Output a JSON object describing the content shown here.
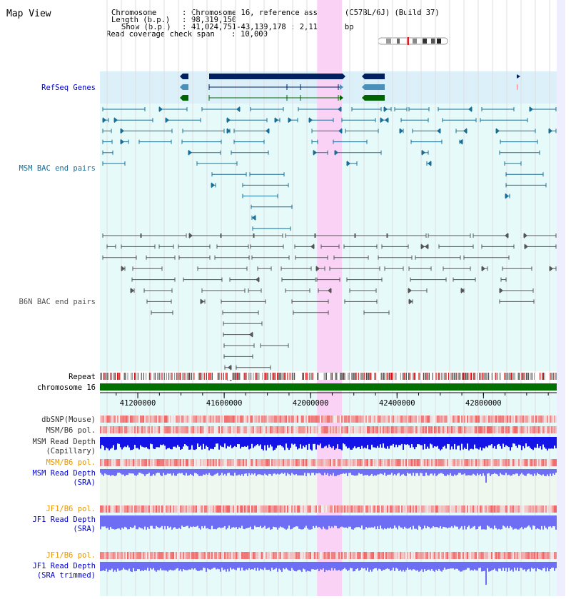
{
  "title": "Map View",
  "info": {
    "chromosome_label": "Chromosome",
    "chromosome_value": "Chromosome 16, reference assembly (C57BL/6J) (Build 37)",
    "length_label": "Length (b.p.)",
    "length_value": "98,319,150",
    "show_label": "Show (b.p.)",
    "show_value": "41,024,751-43,139,178 : 2,114,428 bp",
    "span_label": "Read coverage check span",
    "span_value": "10,000"
  },
  "tracks": {
    "refseq": "RefSeq Genes",
    "msm_bac": "MSM BAC end pairs",
    "b6n_bac": "B6N BAC end pairs",
    "repeat": "Repeat",
    "chromosome": "chromosome 16",
    "dbsnp": "dbSNP(Mouse)",
    "msm_b6_pol_1": "MSM/B6 pol.",
    "msm_read_depth_cap_1": "MSM Read Depth",
    "msm_read_depth_cap_2": "(Capillary)",
    "msm_b6_pol_2": "MSM/B6 pol.",
    "msm_read_depth_sra_1": "MSM Read Depth",
    "msm_read_depth_sra_2": "(SRA)",
    "jf1_b6_pol_1": "JF1/B6 pol.",
    "jf1_read_depth_sra_1": "JF1 Read Depth",
    "jf1_read_depth_sra_2": "(SRA)",
    "jf1_b6_pol_2": "JF1/B6 pol.",
    "jf1_read_depth_trim_1": "JF1 Read Depth",
    "jf1_read_depth_trim_2": "(SRA trimmed)"
  },
  "ruler_ticks": [
    {
      "pos": 41200000,
      "label": "41200000"
    },
    {
      "pos": 41600000,
      "label": "41600000"
    },
    {
      "pos": 42000000,
      "label": "42000000"
    },
    {
      "pos": 42400000,
      "label": "42400000"
    },
    {
      "pos": 42800000,
      "label": "42800000"
    }
  ],
  "view_range": [
    41024751,
    43139178
  ],
  "highlight_range": [
    42030000,
    42145000
  ],
  "colors": {
    "refseq_bg": "#dcf0fa",
    "track_bg": "#e6fafa",
    "highlight": "#fad2f5",
    "msm_label": "#1a6e96",
    "msm_bac": "#1a6e96",
    "b6n_label": "#555555",
    "b6n_bac": "#555555",
    "chromosome": "#007000",
    "blue_label": "#0000cc",
    "orange_label": "#e69600",
    "gene_dark": "#002060",
    "gene_mid": "#4a90b8",
    "gene_green": "#006400",
    "depth_dark": "#1414e6",
    "depth_light": "#6e6ef5"
  }
}
